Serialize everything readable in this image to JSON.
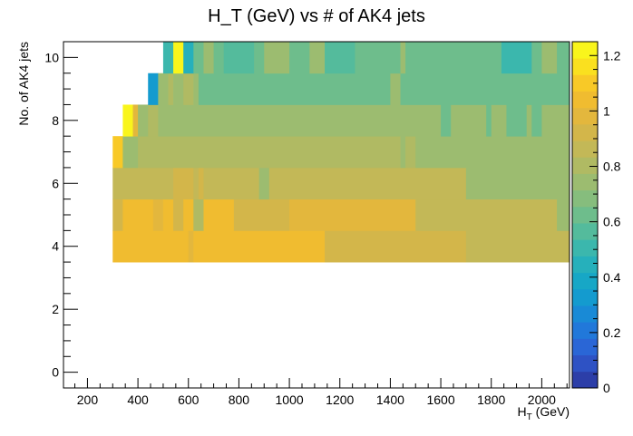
{
  "chart_data": {
    "type": "heatmap",
    "title": "H_T (GeV) vs # of AK4 jets",
    "xlabel_main": "H",
    "xlabel_sub": "T",
    "xlabel_unit": " (GeV)",
    "ylabel": "No. of AK4 jets",
    "xlim": [
      105,
      2110
    ],
    "ylim": [
      -0.5,
      10.5
    ],
    "x_ticks": [
      200,
      400,
      600,
      800,
      1000,
      1200,
      1400,
      1600,
      1800,
      2000
    ],
    "y_ticks": [
      0,
      2,
      4,
      6,
      8,
      10
    ],
    "zlim": [
      0,
      1.25
    ],
    "z_ticks": [
      0,
      0.2,
      0.4,
      0.6,
      0.8,
      1,
      1.2
    ],
    "palette": [
      "#2c3ea8",
      "#2e52c4",
      "#2a66d6",
      "#2178da",
      "#198ad6",
      "#149bcf",
      "#17a7c6",
      "#26b0bb",
      "#3bb7ad",
      "#54bb9c",
      "#6ebd8c",
      "#86bd7d",
      "#9cbc70",
      "#b0ba63",
      "#c3b857",
      "#d3b64a",
      "#e3b73d",
      "#f0bc30",
      "#f8c927",
      "#fae01f",
      "#f9f51c"
    ],
    "rows": [
      {
        "y": 4,
        "cells": [
          [
            300,
            440,
            1.05
          ],
          [
            440,
            460,
            1.05
          ],
          [
            460,
            520,
            1.05
          ],
          [
            520,
            540,
            1.05
          ],
          [
            540,
            600,
            1.05
          ],
          [
            600,
            620,
            1.0
          ],
          [
            620,
            700,
            1.05
          ],
          [
            700,
            880,
            1.05
          ],
          [
            880,
            1140,
            1.05
          ],
          [
            1140,
            1700,
            0.95
          ],
          [
            1700,
            2110,
            0.88
          ]
        ]
      },
      {
        "y": 5,
        "cells": [
          [
            300,
            340,
            0.92
          ],
          [
            340,
            460,
            1.05
          ],
          [
            460,
            500,
            1.0
          ],
          [
            500,
            540,
            1.05
          ],
          [
            540,
            580,
            0.95
          ],
          [
            580,
            620,
            1.05
          ],
          [
            620,
            660,
            0.8
          ],
          [
            660,
            720,
            1.05
          ],
          [
            720,
            780,
            1.05
          ],
          [
            780,
            880,
            0.95
          ],
          [
            880,
            1000,
            0.95
          ],
          [
            1000,
            1500,
            0.98
          ],
          [
            1500,
            2060,
            0.85
          ],
          [
            2060,
            2110,
            0.72
          ]
        ]
      },
      {
        "y": 6,
        "cells": [
          [
            300,
            540,
            0.85
          ],
          [
            540,
            620,
            0.92
          ],
          [
            620,
            640,
            0.85
          ],
          [
            640,
            660,
            0.95
          ],
          [
            660,
            880,
            0.85
          ],
          [
            880,
            920,
            0.72
          ],
          [
            920,
            1700,
            0.85
          ],
          [
            1700,
            2110,
            0.75
          ]
        ]
      },
      {
        "y": 7,
        "cells": [
          [
            300,
            340,
            1.1
          ],
          [
            340,
            400,
            0.75
          ],
          [
            400,
            440,
            0.82
          ],
          [
            440,
            1400,
            0.78
          ],
          [
            1400,
            1440,
            0.8
          ],
          [
            1440,
            1460,
            0.72
          ],
          [
            1460,
            1500,
            0.78
          ],
          [
            1500,
            1540,
            0.72
          ],
          [
            1540,
            2110,
            0.72
          ]
        ]
      },
      {
        "y": 8,
        "cells": [
          [
            340,
            380,
            1.25
          ],
          [
            380,
            400,
            1.0
          ],
          [
            400,
            440,
            0.72
          ],
          [
            440,
            480,
            0.8
          ],
          [
            480,
            500,
            0.75
          ],
          [
            500,
            1600,
            0.72
          ],
          [
            1600,
            1640,
            0.65
          ],
          [
            1640,
            1780,
            0.72
          ],
          [
            1780,
            1800,
            0.65
          ],
          [
            1800,
            1860,
            0.72
          ],
          [
            1860,
            1940,
            0.65
          ],
          [
            1940,
            1960,
            0.72
          ],
          [
            1960,
            2000,
            0.65
          ],
          [
            2000,
            2110,
            0.72
          ]
        ]
      },
      {
        "y": 9,
        "cells": [
          [
            440,
            480,
            0.35
          ],
          [
            480,
            520,
            0.72
          ],
          [
            520,
            540,
            0.78
          ],
          [
            540,
            580,
            0.72
          ],
          [
            580,
            620,
            0.82
          ],
          [
            620,
            640,
            0.72
          ],
          [
            640,
            760,
            0.62
          ],
          [
            760,
            1400,
            0.65
          ],
          [
            1400,
            1440,
            0.72
          ],
          [
            1440,
            2110,
            0.6
          ]
        ]
      },
      {
        "y": 10,
        "cells": [
          [
            500,
            540,
            0.5
          ],
          [
            540,
            580,
            1.2
          ],
          [
            580,
            620,
            0.42
          ],
          [
            620,
            660,
            0.65
          ],
          [
            660,
            700,
            0.72
          ],
          [
            700,
            740,
            0.65
          ],
          [
            740,
            860,
            0.55
          ],
          [
            860,
            900,
            0.65
          ],
          [
            900,
            1000,
            0.72
          ],
          [
            1000,
            1040,
            0.6
          ],
          [
            1040,
            1080,
            0.65
          ],
          [
            1080,
            1140,
            0.72
          ],
          [
            1140,
            1260,
            0.55
          ],
          [
            1260,
            1300,
            0.6
          ],
          [
            1300,
            1440,
            0.62
          ],
          [
            1440,
            1460,
            0.72
          ],
          [
            1460,
            1500,
            0.65
          ],
          [
            1500,
            1840,
            0.6
          ],
          [
            1840,
            1960,
            0.5
          ],
          [
            1960,
            2000,
            0.6
          ],
          [
            2000,
            2060,
            0.72
          ],
          [
            2060,
            2110,
            0.65
          ]
        ]
      }
    ]
  }
}
